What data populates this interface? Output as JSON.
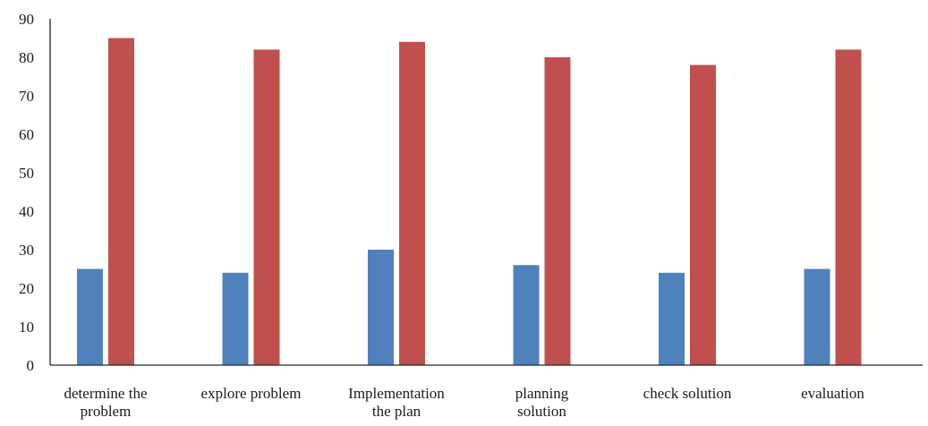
{
  "chart_data": {
    "type": "bar",
    "categories": [
      [
        "determine the",
        "problem"
      ],
      [
        "explore problem"
      ],
      [
        "Implementation",
        "the plan"
      ],
      [
        "planning",
        "solution"
      ],
      [
        "check solution"
      ],
      [
        "evaluation"
      ]
    ],
    "series": [
      {
        "values": [
          25,
          24,
          30,
          26,
          24,
          25
        ],
        "color": "#4f81bd"
      },
      {
        "values": [
          85,
          82,
          84,
          80,
          78,
          82
        ],
        "color": "#c0504d"
      }
    ],
    "ylim": [
      0,
      90
    ],
    "yticks": [
      "0",
      "10",
      "20",
      "30",
      "40",
      "50",
      "60",
      "70",
      "80",
      "90"
    ],
    "title": "",
    "xlabel": "",
    "ylabel": "",
    "grid": false,
    "legend": "none"
  }
}
